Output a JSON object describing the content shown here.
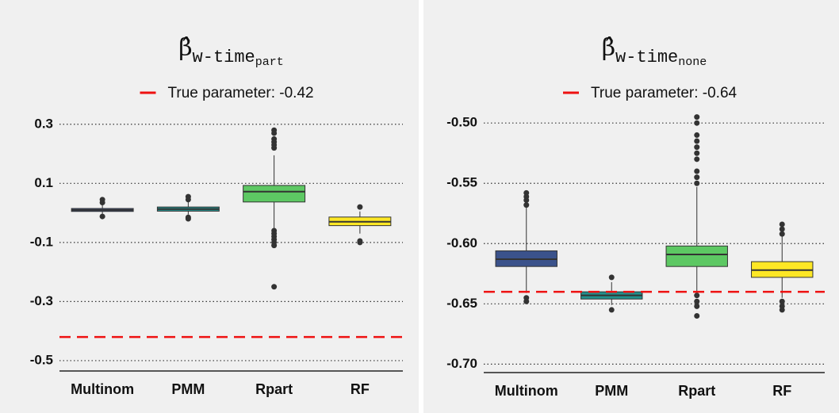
{
  "chart_data": [
    {
      "type": "box",
      "title": "β̂",
      "title_subscript": "w-time",
      "title_subscript2": "part",
      "reference_line": {
        "name": "True parameter: -0.42",
        "value": -0.42,
        "color": "#ee1111"
      },
      "categories": [
        "Multinom",
        "PMM",
        "Rpart",
        "RF"
      ],
      "colors": [
        "#3b528b",
        "#21908d",
        "#5dc863",
        "#fde725"
      ],
      "boxes": [
        {
          "min": -0.005,
          "q1": 0.005,
          "median": 0.01,
          "q3": 0.015,
          "max": 0.03,
          "outliers": [
            0.045,
            0.035,
            -0.012
          ]
        },
        {
          "min": -0.005,
          "q1": 0.006,
          "median": 0.013,
          "q3": 0.02,
          "max": 0.04,
          "outliers": [
            0.055,
            0.045,
            -0.015,
            -0.02
          ]
        },
        {
          "min": -0.057,
          "q1": 0.037,
          "median": 0.072,
          "q3": 0.093,
          "max": 0.195,
          "outliers": [
            0.28,
            0.27,
            0.25,
            0.24,
            0.23,
            0.22,
            -0.06,
            -0.07,
            -0.08,
            -0.09,
            -0.1,
            -0.11,
            -0.25
          ]
        },
        {
          "min": -0.07,
          "q1": -0.043,
          "median": -0.03,
          "q3": -0.014,
          "max": 0.005,
          "outliers": [
            0.02,
            -0.095,
            -0.1
          ]
        }
      ],
      "ylim": [
        -0.535,
        0.345
      ],
      "yticks": [
        0.3,
        0.1,
        -0.1,
        -0.3,
        -0.5
      ],
      "grid": true
    },
    {
      "type": "box",
      "title": "β̂",
      "title_subscript": "w-time",
      "title_subscript2": "none",
      "reference_line": {
        "name": "True parameter: -0.64",
        "value": -0.64,
        "color": "#ee1111"
      },
      "categories": [
        "Multinom",
        "PMM",
        "Rpart",
        "RF"
      ],
      "colors": [
        "#3b528b",
        "#21908d",
        "#5dc863",
        "#fde725"
      ],
      "boxes": [
        {
          "min": -0.641,
          "q1": -0.619,
          "median": -0.613,
          "q3": -0.606,
          "max": -0.57,
          "outliers": [
            -0.558,
            -0.561,
            -0.564,
            -0.568,
            -0.645,
            -0.648
          ]
        },
        {
          "min": -0.651,
          "q1": -0.646,
          "median": -0.643,
          "q3": -0.64,
          "max": -0.632,
          "outliers": [
            -0.628,
            -0.655
          ]
        },
        {
          "min": -0.64,
          "q1": -0.619,
          "median": -0.609,
          "q3": -0.602,
          "max": -0.553,
          "outliers": [
            -0.495,
            -0.5,
            -0.51,
            -0.515,
            -0.52,
            -0.525,
            -0.53,
            -0.54,
            -0.545,
            -0.55,
            -0.643,
            -0.648,
            -0.652,
            -0.66
          ]
        },
        {
          "min": -0.645,
          "q1": -0.628,
          "median": -0.622,
          "q3": -0.615,
          "max": -0.594,
          "outliers": [
            -0.584,
            -0.588,
            -0.592,
            -0.648,
            -0.652,
            -0.655
          ]
        }
      ],
      "ylim": [
        -0.707,
        -0.49
      ],
      "yticks": [
        {
          "value": -0.5,
          "label": "-0.50"
        },
        -0.55,
        {
          "value": -0.6,
          "label": "-0.60"
        },
        -0.65,
        {
          "value": -0.7,
          "label": "-0.70"
        }
      ],
      "grid": true
    }
  ]
}
